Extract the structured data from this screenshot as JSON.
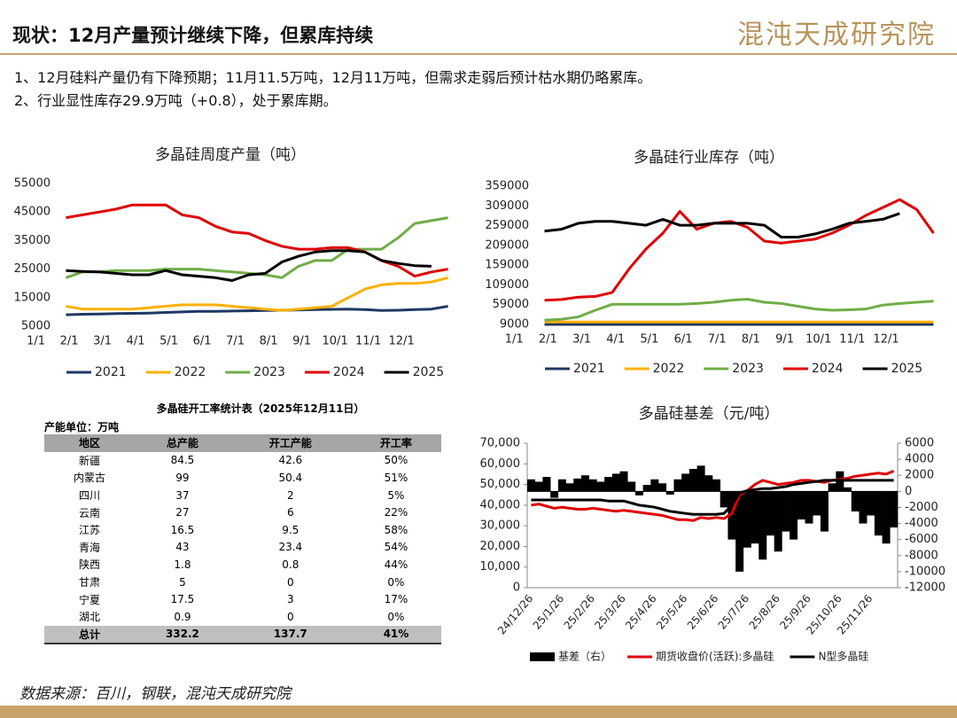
{
  "header": {
    "title": "现状：12月产量预计继续下降，但累库持续",
    "logo": "混沌天成研究院"
  },
  "bullets": [
    "1、12月硅料产量仍有下降预期；11月11.5万吨，12月11万吨，但需求走弱后预计枯水期仍略累库。",
    "2、行业显性库存29.9万吨（+0.8），处于累库期。"
  ],
  "chart_data": [
    {
      "type": "line",
      "title": "多晶硅周度产量（吨）",
      "categories": [
        "1/1",
        null,
        "2/1",
        null,
        "3/1",
        null,
        "4/1",
        null,
        "5/1",
        null,
        "6/1",
        null,
        "7/1",
        null,
        "8/1",
        null,
        "9/1",
        null,
        "10/1",
        null,
        "11/1",
        null,
        "12/1",
        null
      ],
      "ylim": [
        5000,
        55000
      ],
      "yticks": [
        5000,
        15000,
        25000,
        35000,
        45000,
        55000
      ],
      "legend": "bottom",
      "series": [
        {
          "name": "2021",
          "color": "#1f3864",
          "values": [
            9000,
            9200,
            9300,
            9400,
            9500,
            9600,
            9800,
            10000,
            10200,
            10200,
            10300,
            10400,
            10500,
            10600,
            10700,
            10800,
            10900,
            11000,
            10800,
            10500,
            10600,
            10800,
            11000,
            12000
          ]
        },
        {
          "name": "2022",
          "color": "#ffb000",
          "values": [
            12000,
            11000,
            11000,
            11000,
            11000,
            11500,
            12000,
            12500,
            12500,
            12500,
            12000,
            11500,
            11000,
            10500,
            11000,
            11500,
            12000,
            15000,
            18000,
            19500,
            20000,
            20000,
            20500,
            22000
          ]
        },
        {
          "name": "2023",
          "color": "#70ad47",
          "values": [
            22000,
            24000,
            24000,
            24500,
            24500,
            24500,
            25000,
            25000,
            25000,
            24500,
            24000,
            23500,
            23000,
            22000,
            26000,
            28000,
            28000,
            32000,
            32000,
            32000,
            36000,
            41000,
            42000,
            43000
          ]
        },
        {
          "name": "2024",
          "color": "#e00000",
          "values": [
            43000,
            44000,
            45000,
            46000,
            47500,
            47500,
            47500,
            44000,
            43000,
            40000,
            38000,
            37500,
            35000,
            33000,
            32000,
            32000,
            32500,
            32500,
            31000,
            28000,
            26000,
            22500,
            24000,
            25000
          ]
        },
        {
          "name": "2025",
          "color": "#000000",
          "values": [
            24500,
            24200,
            24000,
            23500,
            23000,
            23000,
            24500,
            23000,
            22500,
            22000,
            21000,
            23000,
            23500,
            27500,
            29500,
            31000,
            31500,
            31500,
            31000,
            28000,
            27000,
            26200,
            26000,
            null
          ]
        }
      ]
    },
    {
      "type": "line",
      "title": "多晶硅行业库存（吨）",
      "categories": [
        "1/1",
        null,
        "2/1",
        null,
        "3/1",
        null,
        "4/1",
        null,
        "5/1",
        null,
        "6/1",
        null,
        "7/1",
        null,
        "8/1",
        null,
        "9/1",
        null,
        "10/1",
        null,
        "11/1",
        null,
        "12/1",
        null
      ],
      "ylim": [
        9000,
        359000
      ],
      "yticks": [
        9000,
        59000,
        109000,
        159000,
        209000,
        259000,
        309000,
        359000
      ],
      "legend": "bottom",
      "series": [
        {
          "name": "2021",
          "color": "#1f3864",
          "values": [
            9000,
            9000,
            9000,
            9000,
            9000,
            9000,
            9000,
            9000,
            9000,
            9000,
            9000,
            9000,
            9000,
            9000,
            9000,
            9000,
            9000,
            9000,
            9000,
            9000,
            9000,
            9000,
            9000,
            9000
          ]
        },
        {
          "name": "2022",
          "color": "#ffb000",
          "values": [
            15000,
            15000,
            15000,
            15000,
            15000,
            15000,
            15000,
            15000,
            15000,
            15000,
            15000,
            15000,
            15000,
            15000,
            15000,
            15000,
            15000,
            15000,
            15000,
            15000,
            15000,
            15000,
            15000,
            15000
          ]
        },
        {
          "name": "2023",
          "color": "#70ad47",
          "values": [
            20000,
            22000,
            28000,
            45000,
            60000,
            60000,
            60000,
            60000,
            60000,
            62000,
            65000,
            70000,
            73000,
            65000,
            62000,
            55000,
            48000,
            45000,
            46000,
            48000,
            58000,
            62000,
            65000,
            68000
          ]
        },
        {
          "name": "2024",
          "color": "#e00000",
          "values": [
            70000,
            72000,
            78000,
            80000,
            90000,
            150000,
            200000,
            240000,
            295000,
            250000,
            265000,
            270000,
            255000,
            220000,
            215000,
            220000,
            225000,
            240000,
            260000,
            285000,
            305000,
            325000,
            300000,
            240000
          ]
        },
        {
          "name": "2025",
          "color": "#000000",
          "values": [
            245000,
            250000,
            265000,
            270000,
            270000,
            265000,
            260000,
            275000,
            260000,
            260000,
            265000,
            265000,
            265000,
            260000,
            230000,
            230000,
            238000,
            250000,
            265000,
            270000,
            275000,
            290000,
            null,
            null
          ]
        }
      ]
    },
    {
      "type": "line",
      "title": "多晶硅基差（元/吨）",
      "categories": [
        "24/12/26",
        null,
        null,
        null,
        "25/1/26",
        null,
        null,
        null,
        "25/2/26",
        null,
        null,
        null,
        "25/3/26",
        null,
        null,
        null,
        "25/4/26",
        null,
        null,
        null,
        "25/5/26",
        null,
        null,
        null,
        "25/6/26",
        null,
        null,
        null,
        "25/7/26",
        null,
        null,
        null,
        "25/8/26",
        null,
        null,
        null,
        "25/9/26",
        null,
        null,
        null,
        "25/10/26",
        null,
        null,
        null,
        "25/11/26",
        null,
        null,
        null
      ],
      "ylim": [
        0,
        70000
      ],
      "yticks": [
        0,
        {
          "value": 10000,
          "label": "10,000"
        },
        {
          "value": 20000,
          "label": "20,000"
        },
        {
          "value": 30000,
          "label": "30,000"
        },
        {
          "value": 40000,
          "label": "40,000"
        },
        {
          "value": 50000,
          "label": "50,000"
        },
        {
          "value": 60000,
          "label": "60,000"
        },
        {
          "value": 70000,
          "label": "70,000"
        }
      ],
      "y2lim": [
        -12000,
        6000
      ],
      "y2ticks": [
        -12000,
        -10000,
        -8000,
        -6000,
        -4000,
        -2000,
        0,
        2000,
        4000,
        6000
      ],
      "legend": "bottom",
      "series": [
        {
          "name": "基差（右）",
          "type": "bar",
          "axis": "y2",
          "color": "#000000",
          "values": [
            1500,
            1200,
            1800,
            -800,
            1500,
            1000,
            1600,
            2000,
            1500,
            1200,
            1800,
            2200,
            2500,
            1200,
            -500,
            800,
            1500,
            1000,
            -400,
            1500,
            2200,
            2800,
            3200,
            2000,
            1500,
            -2000,
            -6000,
            -10000,
            -7000,
            -6500,
            -8500,
            -5500,
            -7500,
            -5000,
            -6000,
            -3500,
            -4000,
            -3000,
            -5000,
            1000,
            2500,
            500,
            -2500,
            -4000,
            -3000,
            -5500,
            -6500,
            -4500
          ]
        },
        {
          "name": "期货收盘价(活跃):多晶硅",
          "type": "line",
          "color": "#e00000",
          "values": [
            40000,
            40500,
            39500,
            38500,
            39000,
            38500,
            38000,
            38000,
            38500,
            38000,
            37500,
            37000,
            37500,
            37000,
            36500,
            36000,
            35500,
            35000,
            34000,
            33000,
            33000,
            32500,
            34000,
            33500,
            34000,
            33500,
            36000,
            45000,
            47000,
            50000,
            52000,
            51000,
            50000,
            50500,
            51000,
            52000,
            52000,
            51500,
            51000,
            52000,
            52500,
            53000,
            54000,
            54500,
            55000,
            55500,
            55000,
            56500
          ]
        },
        {
          "name": "N型多晶硅",
          "type": "line",
          "color": "#000000",
          "values": [
            42500,
            42500,
            42500,
            42500,
            42500,
            42500,
            42500,
            42500,
            42500,
            42500,
            42000,
            42000,
            42000,
            41000,
            40000,
            39500,
            39000,
            38000,
            37000,
            36500,
            36000,
            35500,
            35500,
            35500,
            35500,
            36000,
            40000,
            46000,
            47000,
            47500,
            48000,
            48000,
            48500,
            49000,
            50000,
            50500,
            51000,
            51500,
            52000,
            52000,
            52000,
            52000,
            52000,
            52000,
            52000,
            52000,
            52000,
            52000
          ]
        }
      ]
    }
  ],
  "table": {
    "title": "多晶硅开工率统计表（2025年12月11日）",
    "unit": "产能单位：万吨",
    "columns": [
      "地区",
      "总产能",
      "开工产能",
      "开工率"
    ],
    "rows": [
      [
        "新疆",
        "84.5",
        "42.6",
        "50%"
      ],
      [
        "内蒙古",
        "99",
        "50.4",
        "51%"
      ],
      [
        "四川",
        "37",
        "2",
        "5%"
      ],
      [
        "云南",
        "27",
        "6",
        "22%"
      ],
      [
        "江苏",
        "16.5",
        "9.5",
        "58%"
      ],
      [
        "青海",
        "43",
        "23.4",
        "54%"
      ],
      [
        "陕西",
        "1.8",
        "0.8",
        "44%"
      ],
      [
        "甘肃",
        "5",
        "0",
        "0%"
      ],
      [
        "宁夏",
        "17.5",
        "3",
        "17%"
      ],
      [
        "湖北",
        "0.9",
        "0",
        "0%"
      ]
    ],
    "total": [
      "总计",
      "332.2",
      "137.7",
      "41%"
    ]
  },
  "footer": "数据来源：百川，钢联，混沌天成研究院"
}
